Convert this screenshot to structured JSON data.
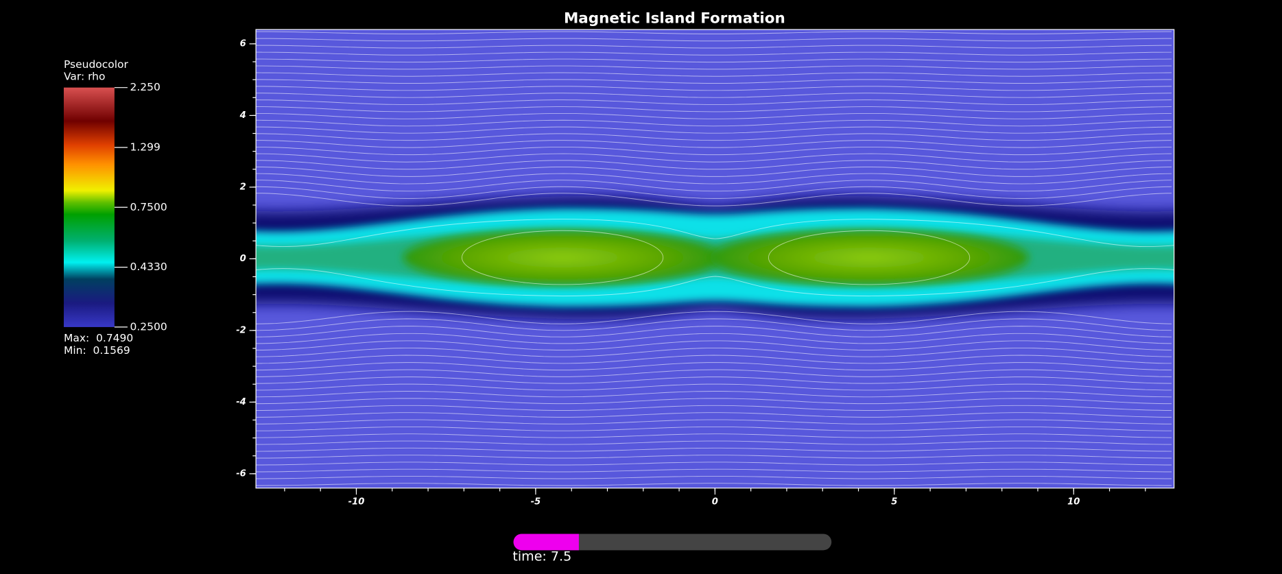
{
  "chart_data": {
    "type": "pseudocolor",
    "title": "Magnetic Island Formation",
    "xlim": [
      -12.8,
      12.8
    ],
    "ylim": [
      -6.4,
      6.4
    ],
    "xticks": [
      -10,
      -5,
      0,
      5,
      10
    ],
    "yticks": [
      -6,
      -4,
      -2,
      0,
      2,
      4,
      6
    ],
    "legend": {
      "plot": "Pseudocolor",
      "var": "Var: rho",
      "lim": [
        0.25,
        2.25
      ],
      "log": true,
      "ticks": [
        {
          "value": 2.25,
          "label": "2.250"
        },
        {
          "value": 1.299,
          "label": "1.299"
        },
        {
          "value": 0.75,
          "label": "0.7500"
        },
        {
          "value": 0.433,
          "label": "0.4330"
        },
        {
          "value": 0.25,
          "label": "0.2500"
        }
      ],
      "max": "Max:  0.7490",
      "min": "Min:  0.1569"
    },
    "time": "time: 7.5"
  }
}
